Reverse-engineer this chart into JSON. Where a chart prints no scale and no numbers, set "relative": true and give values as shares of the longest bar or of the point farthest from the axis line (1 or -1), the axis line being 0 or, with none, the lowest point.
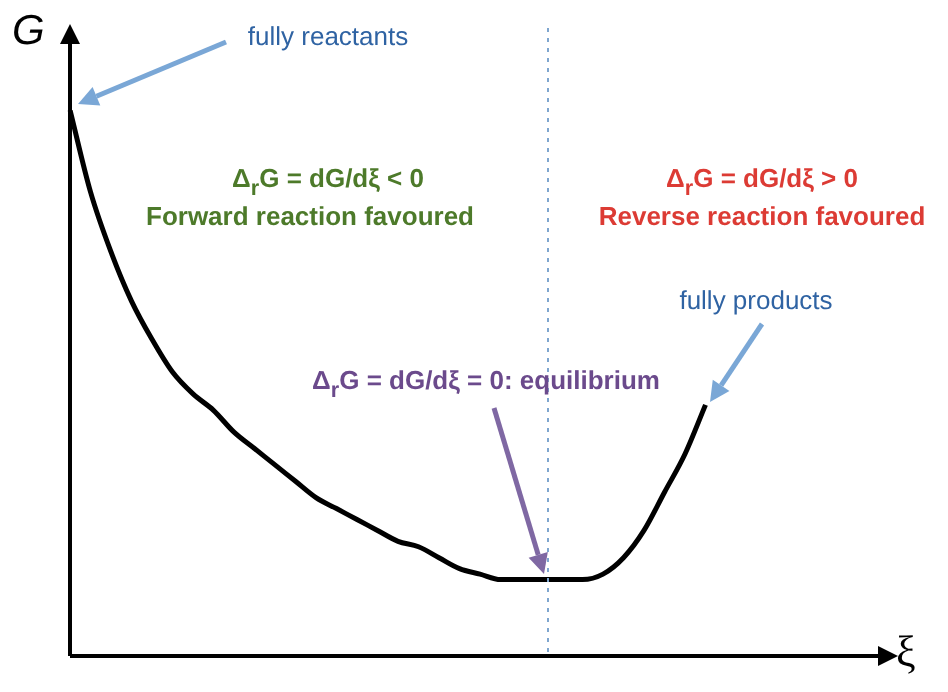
{
  "chart_data": {
    "type": "line",
    "categories": [
      null,
      null,
      null,
      null,
      null,
      null,
      null,
      null,
      null,
      null,
      null,
      null,
      null,
      null,
      null,
      null,
      null,
      null,
      null,
      null,
      null,
      null,
      null,
      null,
      null,
      null,
      null,
      null,
      null,
      null,
      null,
      null,
      null,
      null,
      null,
      null,
      null,
      null,
      null,
      null,
      null
    ],
    "series": [
      {
        "color": "#000000",
        "values": [
          1.0,
          0.85,
          0.74,
          0.65,
          0.58,
          0.52,
          0.48,
          0.45,
          0.41,
          0.38,
          0.35,
          0.32,
          0.29,
          0.27,
          0.25,
          0.23,
          0.21,
          0.2,
          0.18,
          0.16,
          0.15,
          0.14,
          0.14,
          0.14,
          0.14,
          0.14,
          0.15,
          0.18,
          0.23,
          0.3,
          0.37,
          0.46,
          null,
          null,
          null,
          null,
          null,
          null,
          null,
          null,
          null
        ]
      }
    ],
    "relative": true,
    "ylabel": "G",
    "xlabel": "ξ",
    "annotations": [
      "fully reactants",
      "Δ$_{r}$G = dG/dξ < 0",
      "Forward reaction favoured",
      "Δ$_{r}$G = dG/dξ > 0",
      "Reverse reaction favoured",
      "fully products",
      "Δ$_{r}$G = dG/dξ = 0: equilibrium"
    ],
    "grid": false,
    "legend": false,
    "marker": "none",
    "line_style": "solid"
  }
}
